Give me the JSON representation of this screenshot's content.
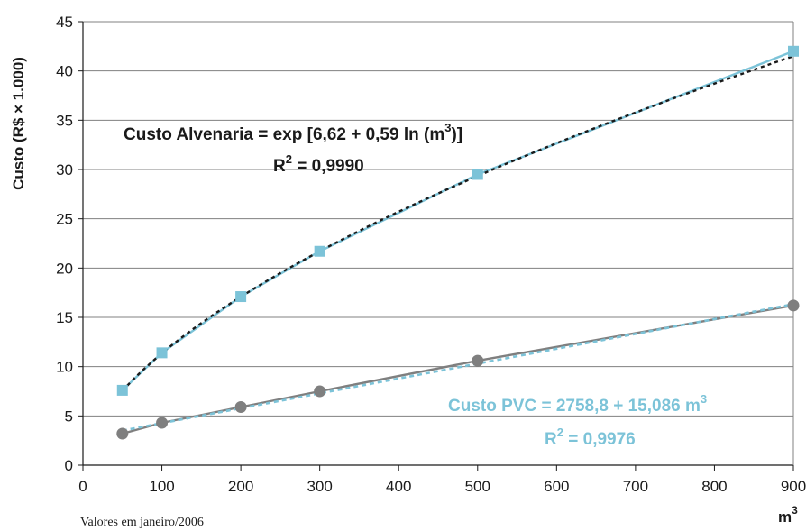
{
  "chart_data": {
    "type": "line",
    "title": "",
    "ylabel": "Custo (R$ × 1.000)",
    "xlabel": "m3",
    "xlabel_base": "m",
    "xlabel_sup": "3",
    "xlim": [
      0,
      900
    ],
    "ylim": [
      0,
      45
    ],
    "x_ticks": [
      "0",
      "100",
      "200",
      "300",
      "400",
      "500",
      "600",
      "700",
      "800",
      "900"
    ],
    "y_ticks": [
      "0",
      "5",
      "10",
      "15",
      "20",
      "25",
      "30",
      "35",
      "40",
      "45"
    ],
    "grid": "horizontal",
    "colors": {
      "alvenaria": "#7cc3d8",
      "pvc": "#7f7f7f",
      "trend_dark": "#1a1a1a",
      "trend_blue": "#7cc3d8",
      "grid": "#808080"
    },
    "series": [
      {
        "marker": "square",
        "x": [
          50,
          100,
          200,
          300,
          500,
          900
        ],
        "y": [
          7.6,
          11.4,
          17.1,
          21.7,
          29.5,
          42.0
        ]
      },
      {
        "marker": "circle",
        "x": [
          50,
          100,
          200,
          300,
          500,
          900
        ],
        "y": [
          3.2,
          4.3,
          5.9,
          7.5,
          10.6,
          16.2
        ]
      }
    ],
    "annotations": {
      "alvenaria_eq_main": "Custo Alvenaria = exp [6,62 + 0,59 ln (m",
      "alvenaria_eq_sup": "3",
      "alvenaria_eq_end": ")]",
      "alvenaria_r2_base": "R",
      "alvenaria_r2_sup": "2",
      "alvenaria_r2_val": " = 0,9990",
      "pvc_eq_main": "Custo PVC = 2758,8 + 15,086 m",
      "pvc_eq_sup": "3",
      "pvc_r2_base": "R",
      "pvc_r2_sup": "2",
      "pvc_r2_val": " = 0,9976"
    },
    "note": "Valores em janeiro/2006"
  }
}
